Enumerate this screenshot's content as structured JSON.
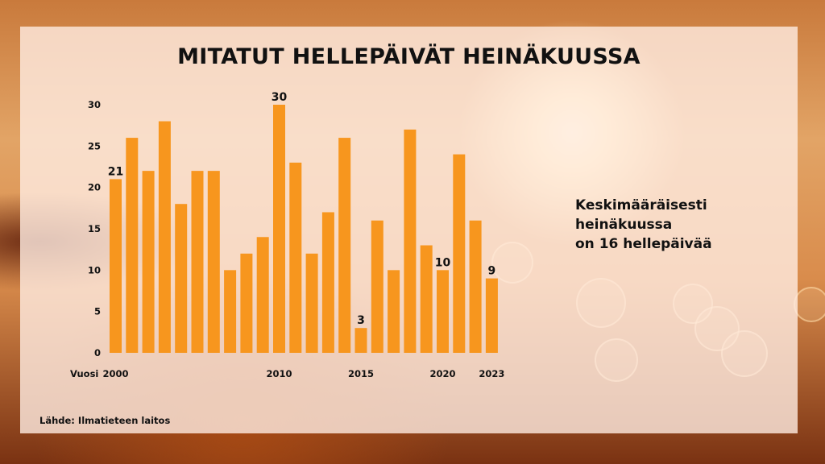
{
  "chart_data": {
    "type": "bar",
    "title": "MITATUT HELLEPÄIVÄT HEINÄKUUSSA",
    "xlabel": "Vuosi",
    "ylabel": "",
    "ylim": [
      0,
      30
    ],
    "yticks": [
      0,
      5,
      10,
      15,
      20,
      25,
      30
    ],
    "x": [
      2000,
      2001,
      2002,
      2003,
      2004,
      2005,
      2006,
      2007,
      2008,
      2009,
      2010,
      2011,
      2012,
      2013,
      2014,
      2015,
      2016,
      2017,
      2018,
      2019,
      2020,
      2021,
      2022,
      2023
    ],
    "values": [
      21,
      26,
      22,
      28,
      18,
      22,
      22,
      10,
      12,
      14,
      30,
      23,
      12,
      17,
      26,
      3,
      16,
      10,
      27,
      13,
      10,
      24,
      16,
      9
    ],
    "xtick_labels": [
      "2000",
      "2010",
      "2015",
      "2020",
      "2023"
    ],
    "value_labels": [
      {
        "x": 2000,
        "label": "21"
      },
      {
        "x": 2010,
        "label": "30"
      },
      {
        "x": 2015,
        "label": "3"
      },
      {
        "x": 2020,
        "label": "10"
      },
      {
        "x": 2023,
        "label": "9"
      }
    ],
    "bar_color": "#f7961e",
    "grid": false,
    "legend": "none"
  },
  "annotation": {
    "lines": [
      "Keskimääräisesti",
      "heinäkuussa",
      "on 16 hellepäivää"
    ]
  },
  "source": "Lähde: Ilmatieteen laitos"
}
